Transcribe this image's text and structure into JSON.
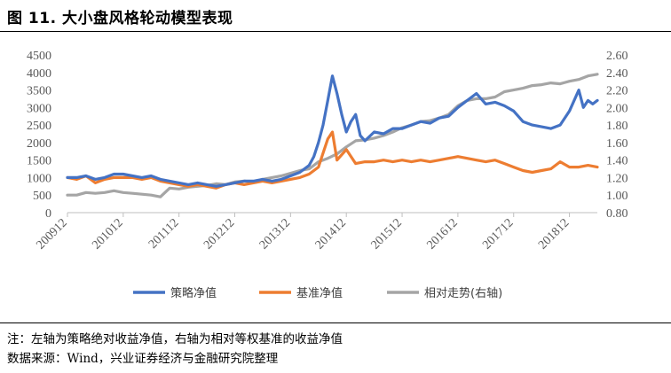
{
  "figure": {
    "title": "图 11. 大小盘风格轮动模型表现"
  },
  "footer": {
    "note": "注：左轴为策略绝对收益净值，右轴为相对等权基准的收益净值",
    "source": "数据来源：Wind，兴业证券经济与金融研究院整理"
  },
  "chart_data": {
    "type": "line",
    "title": "",
    "xlabel": "",
    "ylabel": "",
    "y_left": {
      "ticks": [
        "0",
        "500",
        "1000",
        "1500",
        "2000",
        "2500",
        "3000",
        "3500",
        "4000",
        "4500"
      ],
      "lim": [
        0,
        4500
      ]
    },
    "y_right": {
      "ticks": [
        "0.80",
        "1.00",
        "1.20",
        "1.40",
        "1.60",
        "1.80",
        "2.00",
        "2.20",
        "2.40",
        "2.60"
      ],
      "lim": [
        0.8,
        2.6
      ]
    },
    "x_ticks": [
      "200912",
      "201012",
      "201112",
      "201212",
      "201312",
      "201412",
      "201512",
      "201612",
      "201712",
      "201812"
    ],
    "grid": false,
    "legend_position": "bottom",
    "series": [
      {
        "name": "策略净值",
        "axis": "left",
        "color": "#4472C4",
        "x": [
          0,
          2,
          4,
          6,
          8,
          10,
          12,
          14,
          16,
          18,
          20,
          22,
          24,
          26,
          28,
          30,
          32,
          34,
          36,
          38,
          40,
          42,
          44,
          46,
          48,
          50,
          52,
          53,
          54,
          55,
          56,
          57,
          58,
          59,
          60,
          61,
          62,
          63,
          64,
          66,
          68,
          70,
          72,
          74,
          76,
          78,
          80,
          82,
          84,
          86,
          88,
          90,
          92,
          94,
          96,
          98,
          100,
          102,
          104,
          106,
          108,
          110,
          111,
          112,
          113,
          114
        ],
        "values": [
          1000,
          1000,
          1050,
          950,
          1000,
          1100,
          1100,
          1050,
          1000,
          1050,
          950,
          900,
          850,
          800,
          850,
          800,
          750,
          800,
          850,
          900,
          900,
          950,
          900,
          950,
          1050,
          1150,
          1350,
          1600,
          2000,
          2500,
          3200,
          3900,
          3400,
          2800,
          2300,
          2600,
          2800,
          2200,
          2050,
          2300,
          2250,
          2400,
          2400,
          2500,
          2600,
          2550,
          2700,
          2750,
          3000,
          3200,
          3400,
          3100,
          3150,
          3050,
          2900,
          2600,
          2500,
          2450,
          2400,
          2500,
          2900,
          3500,
          3000,
          3200,
          3100,
          3200
        ]
      },
      {
        "name": "基准净值",
        "axis": "left",
        "color": "#ED7D31",
        "x": [
          0,
          2,
          4,
          6,
          8,
          10,
          12,
          14,
          16,
          18,
          20,
          22,
          24,
          26,
          28,
          30,
          32,
          34,
          36,
          38,
          40,
          42,
          44,
          46,
          48,
          50,
          52,
          54,
          55,
          56,
          57,
          58,
          60,
          62,
          64,
          66,
          68,
          70,
          72,
          74,
          76,
          78,
          80,
          82,
          84,
          86,
          88,
          90,
          92,
          94,
          96,
          98,
          100,
          102,
          104,
          106,
          108,
          110,
          112,
          114
        ],
        "values": [
          1000,
          950,
          1050,
          850,
          950,
          1000,
          1000,
          1000,
          950,
          1000,
          900,
          850,
          800,
          750,
          800,
          750,
          700,
          800,
          850,
          800,
          850,
          900,
          850,
          900,
          950,
          1000,
          1100,
          1300,
          1700,
          2100,
          2300,
          1500,
          1800,
          1400,
          1450,
          1450,
          1500,
          1450,
          1500,
          1450,
          1500,
          1450,
          1500,
          1550,
          1600,
          1550,
          1500,
          1450,
          1500,
          1400,
          1300,
          1200,
          1150,
          1200,
          1250,
          1450,
          1300,
          1300,
          1350,
          1300
        ]
      },
      {
        "name": "相对走势(右轴)",
        "axis": "right",
        "color": "#A5A5A5",
        "x": [
          0,
          2,
          4,
          6,
          8,
          10,
          12,
          14,
          16,
          18,
          20,
          22,
          24,
          26,
          28,
          30,
          32,
          34,
          36,
          38,
          40,
          42,
          44,
          46,
          48,
          50,
          52,
          54,
          56,
          58,
          60,
          62,
          64,
          66,
          68,
          70,
          72,
          74,
          76,
          78,
          80,
          82,
          84,
          86,
          88,
          90,
          92,
          94,
          96,
          98,
          100,
          102,
          104,
          106,
          108,
          110,
          112,
          114
        ],
        "values": [
          1.0,
          1.0,
          1.03,
          1.02,
          1.03,
          1.05,
          1.03,
          1.02,
          1.01,
          1.0,
          0.98,
          1.08,
          1.07,
          1.09,
          1.1,
          1.11,
          1.13,
          1.12,
          1.15,
          1.16,
          1.15,
          1.18,
          1.2,
          1.22,
          1.25,
          1.28,
          1.3,
          1.38,
          1.42,
          1.47,
          1.55,
          1.62,
          1.63,
          1.65,
          1.68,
          1.72,
          1.77,
          1.8,
          1.84,
          1.85,
          1.88,
          1.92,
          2.02,
          2.08,
          2.1,
          2.1,
          2.12,
          2.18,
          2.2,
          2.22,
          2.25,
          2.26,
          2.28,
          2.27,
          2.3,
          2.32,
          2.36,
          2.38
        ]
      }
    ]
  }
}
